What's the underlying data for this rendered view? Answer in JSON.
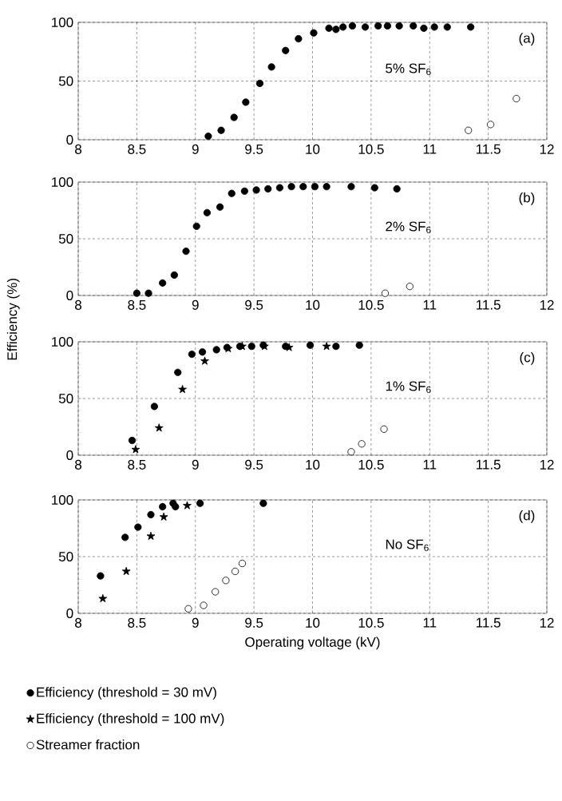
{
  "chart_data": [
    {
      "type": "scatter",
      "xlim": [
        8,
        12
      ],
      "ylim": [
        0,
        100
      ],
      "xticks": [
        8,
        8.5,
        9,
        9.5,
        10,
        10.5,
        11,
        11.5,
        12
      ],
      "yticks": [
        0,
        50,
        100
      ],
      "grid": true,
      "annotations": [
        "(a)",
        "5% SF$_{6}$"
      ],
      "series": [
        {
          "color": "#000000",
          "marker": "circle",
          "x": [
            9.11,
            9.22,
            9.33,
            9.43,
            9.55,
            9.65,
            9.77,
            9.88,
            10.01,
            10.14,
            10.2,
            10.26,
            10.34,
            10.45,
            10.56,
            10.64,
            10.74,
            10.86,
            10.95,
            11.04,
            11.15,
            11.35
          ],
          "values": [
            3,
            8,
            19,
            32,
            48,
            62,
            76,
            86,
            91,
            95,
            94,
            96,
            97,
            96,
            97,
            97,
            97,
            97,
            95,
            96,
            96,
            96
          ]
        },
        {
          "color": "#ffffff",
          "marker": "circle",
          "x": [
            11.33,
            11.52,
            11.74
          ],
          "values": [
            8,
            13,
            35
          ]
        }
      ]
    },
    {
      "type": "scatter",
      "xlim": [
        8,
        12
      ],
      "ylim": [
        0,
        100
      ],
      "xticks": [
        8,
        8.5,
        9,
        9.5,
        10,
        10.5,
        11,
        11.5,
        12
      ],
      "yticks": [
        0,
        50,
        100
      ],
      "grid": true,
      "ylabel": "Efficiency (%)",
      "annotations": [
        "(b)",
        "2% SF$_{6}$"
      ],
      "series": [
        {
          "color": "#000000",
          "marker": "circle",
          "x": [
            8.5,
            8.6,
            8.72,
            8.82,
            8.92,
            9.01,
            9.1,
            9.21,
            9.31,
            9.42,
            9.52,
            9.62,
            9.72,
            9.82,
            9.92,
            10.02,
            10.12,
            10.33,
            10.53,
            10.72
          ],
          "values": [
            2,
            2,
            11,
            18,
            39,
            61,
            73,
            78,
            90,
            92,
            93,
            94,
            95,
            96,
            96,
            96,
            96,
            96,
            95,
            94
          ]
        },
        {
          "color": "#ffffff",
          "marker": "circle",
          "x": [
            10.62,
            10.83
          ],
          "values": [
            2,
            8
          ]
        }
      ]
    },
    {
      "type": "scatter",
      "xlim": [
        8,
        12
      ],
      "ylim": [
        0,
        100
      ],
      "xticks": [
        8,
        8.5,
        9,
        9.5,
        10,
        10.5,
        11,
        11.5,
        12
      ],
      "yticks": [
        0,
        50,
        100
      ],
      "grid": true,
      "annotations": [
        "(c)",
        "1% SF$_{6}$"
      ],
      "series": [
        {
          "color": "#000000",
          "marker": "circle",
          "x": [
            8.46,
            8.65,
            8.85,
            8.97,
            9.06,
            9.18,
            9.27,
            9.38,
            9.48,
            9.58,
            9.77,
            9.98,
            10.2,
            10.4
          ],
          "values": [
            13,
            43,
            73,
            89,
            91,
            93,
            95,
            96,
            96,
            97,
            96,
            97,
            96,
            97
          ]
        },
        {
          "color": "#000000",
          "marker": "star",
          "x": [
            8.49,
            8.69,
            8.89,
            9.08,
            9.28,
            9.4,
            9.59,
            9.8,
            10.12
          ],
          "values": [
            5,
            24,
            58,
            83,
            94,
            96,
            96,
            95,
            96
          ]
        },
        {
          "color": "#ffffff",
          "marker": "circle",
          "x": [
            10.33,
            10.42,
            10.61
          ],
          "values": [
            3,
            10,
            23
          ]
        }
      ]
    },
    {
      "type": "scatter",
      "xlim": [
        8,
        12
      ],
      "ylim": [
        0,
        100
      ],
      "xticks": [
        8,
        8.5,
        9,
        9.5,
        10,
        10.5,
        11,
        11.5,
        12
      ],
      "yticks": [
        0,
        50,
        100
      ],
      "grid": true,
      "xlabel": "Operating voltage (kV)",
      "legend": "bottom",
      "annotations": [
        "(d)",
        "No SF$_{6}$"
      ],
      "series": [
        {
          "name": "Efficiency (threshold = 30 mV)",
          "color": "#000000",
          "marker": "circle",
          "x": [
            8.19,
            8.4,
            8.51,
            8.62,
            8.72,
            8.81,
            8.83,
            9.04,
            9.58
          ],
          "values": [
            33,
            67,
            76,
            87,
            94,
            97,
            94,
            97,
            97
          ]
        },
        {
          "name": "Efficiency (threshold = 100 mV)",
          "color": "#000000",
          "marker": "star",
          "x": [
            8.21,
            8.41,
            8.62,
            8.73,
            8.93
          ],
          "values": [
            13,
            37,
            68,
            85,
            95
          ]
        },
        {
          "name": "Streamer fraction",
          "color": "#ffffff",
          "marker": "circle",
          "x": [
            8.94,
            9.07,
            9.17,
            9.26,
            9.34,
            9.4
          ],
          "values": [
            4,
            7,
            19,
            29,
            37,
            44
          ]
        }
      ]
    }
  ]
}
